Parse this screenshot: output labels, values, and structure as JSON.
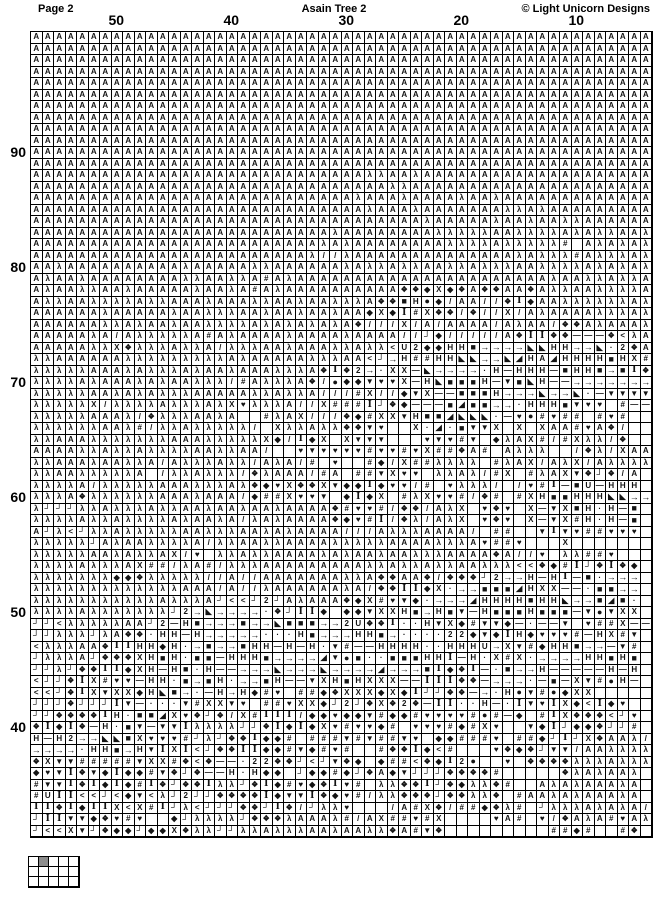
{
  "header": {
    "page_label": "Page 2",
    "title": "Asain Tree 2",
    "copyright": "© Light Unicorn Designs"
  },
  "colors": {
    "symbol": "#131313",
    "grid_line": "#000000",
    "background": "#ffffff",
    "page_map_fill": "#8c8c8c"
  },
  "chart_data": {
    "type": "table",
    "description": "Cross-stitch pattern symbol chart, page 2, columns 57-4 (right to left 4) and rows 100 (top) to 31 (bottom); each cell holds one stitch symbol",
    "n_cols": 54,
    "n_rows": 70,
    "column_ticks": [
      {
        "label": "50",
        "col_index": 7
      },
      {
        "label": "40",
        "col_index": 17
      },
      {
        "label": "30",
        "col_index": 27
      },
      {
        "label": "20",
        "col_index": 37
      },
      {
        "label": "10",
        "col_index": 47
      }
    ],
    "row_ticks": [
      {
        "label": "90",
        "row_index": 10
      },
      {
        "label": "80",
        "row_index": 20
      },
      {
        "label": "70",
        "row_index": 30
      },
      {
        "label": "60",
        "row_index": 40
      },
      {
        "label": "50",
        "row_index": 50
      },
      {
        "label": "40",
        "row_index": 60
      }
    ],
    "symbols": {
      "A": "A",
      "k": "λ",
      "/": "/",
      "v": "♥",
      "T": "▼",
      "X": "X",
      "D": "◆",
      "S": "■",
      "o": "●",
      "I": "I",
      "H": "H",
      "U": "U",
      "#": "#",
      "J": "┘",
      "<": "<",
      ">": "→",
      "L": "◣",
      "R": "◢",
      "%": "❖",
      "-": "—",
      ".": "·",
      "2": "2",
      " ": ""
    },
    "rows": [
      "AAAAAAAAAAAAAAAAAAAAAAAAAAAAAAAAAAAAAAAAAAAAAAAAAAAAAA",
      "AAAAAAAAAAAAAAAAAAAAAAAAAAAAAAAAAAAAAAAAAAAAAAAAAAAAAA",
      "AAAAAAAAAAAAAAAAAAAAAAAAAAAAAAAAAAAAAAAAAAAAAAAAAAAAAA",
      "AAAAAAAAAAAAAAAAAAAAAAAAAAAAAAAAAAAAAAAAAAAAAAAAAAAAAA",
      "AAAAAAAAAAAAAAAAAAAAAAAAAAAAAAAAAAAAAAAAAAAAAAAAAAAAAA",
      "AAAAAAAAAAAAAAAAAAAAAAAAAAAAAAAAAAAAAAAAAAAAAAAAAAAAAA",
      "AAAAAAAAAAAAAAAAAAAAAAAAAAAAAAAAAAAAAAAAAAAAAAAAAAAAAA",
      "AAAAAAAAAAAAAAAAAAAAAAAAAAAAAAAAAAAAAAAAAAAAAAAAAAAAAA",
      "AAAAAAAAAAAAAAAAAAAAAAAAAAAAAAAAAAAAAAAAAAAAAAAAAAAAAA",
      "AAAAAAAAAAAAAAAAAAAAAAAAAAAAAAAAAAAAAAAAAAAAAAAAAAAAAA",
      "AAAAAAAAAAAAAAAAAAAAAAAAAAAAAAAAAAAAAAAAAAAAAAAAAAAAAA",
      "AAAAAAAAAAAAAAAAAAAAAAAAAAAAAAAAAAAAAAAAAAAAAAAAAAAAAA",
      "AAAAAAAAAAAAAAAAAAAAAAAAAAAAAkkAAkAAAAAAAAAAAAAAAAAAA",
      "AAAAAAAAAAAAAAAAAAAAAAAAAAAAAAAkkAAAAAAAAAAAAAAAAAAAA",
      "AAAAAAAAAAAAAAAAAAAAAAAAAAAAkAAAkAAAAkAAkAAAAAAAAAAAAA",
      "AAAAAAAAAAAAAAAAAAAAAAAAAAAAAkAAAkAAAAAAAkkAkAAAAAAAAA",
      "AAAAAAAAAAAAAAAAAAAAAAAAAAAAAAAAAAkAAAAAkAAkAAkkAAAAAA",
      "AAAAAAAAAAAAAAAAAAAAAAAAAAkAAAAAAAAkkkkkAAkkkkAkAkkAAk",
      "AAAAAAAAAAAAAAAAAAAAAAAAAkAkAAAAAAAAkkkkAkkkkk# AkAkAk",
      "AAAAAAAAAAAAAAAAAAAAAAAAk//kAAAAAAAAAAAAAAkAkkk#AkkkAk",
      "AAkAAAAAAAAAAkAAAAAkkAAAAAAkAkkAkkAAkkAkkkAAkkkkAkAkAk",
      "AkAAkAAAAAAAAkkAAkkA#AkAAAAAAAAAAAAAAAAAAAAAAkAAkkAkk",
      "AkAAkkAAkAAAAAkAAkA#AkAAAAAAAAAA%%DXD%A%%AA%AkkAAkkkkA",
      "AkkAAkkkkAkkAAAkAAAkkAAkAAkkkA%%SHoD/AA//%IDAAkkkkkkAk",
      "AAAAAAkAAAAAkAAkkkAAkAAkAAkAADXDI#X%%/%//X/AkAAAAkkkAk",
      "AAAAAAkkAkAAkAAkkkkAkAkAkAkA%///X/A/AAAA/AkAA/%%AkAAAk",
      "AAAAAkA/AkkkkkA#AkAAAAkAAAAkAAAA//JD/////A%II%%---%<kA",
      "AAAAAkkX%kkkAkkA/kkkAAkAAAkkAkk<U2DDHHS>>>>LLHH>>L.2%A",
      "kkAAAAAAkkkkkkkkkAkAAAAAkkkAA<J>H##HHLL>>LRHARHHHHSHX#",
      "kkkkkAAAkAkkkAkAAkAAAkkkA%I%2>.XX-L>>>>.H-HHH-SHHS>SI%",
      "kkkkAkAAAkAkAAkkk/#AkkkA%/oDDTvvX-HLSSSH-TSLH-->>>>>>>",
      "kkkkkAAkAkAkkkAAAAAkkAkkA///#X//DTX--SSSH>>>L>>L.-TTTT",
      "kkkkkX/kkkkAkkkAkXvkkkA//X###IJ%D---SRSS>>.HHHSTvv #--",
      "kkkkkAAAk/%kkkAAkA  #kAX///%D#XXTHSSRLLL.-vo#v## #v#  ",
      "kkkkkkAAk#/kkAkkkkk/ XkkAkk%%Tv  X.R.STTX X XAA#vA%/  ",
      "kkAAAkkkkkkkAAAkkkkkXD/IDX XTTT   vTv#T DkAX#/#Xkk/%  ",
      "AAAAkkAkkAkkkkAAkkAA/  vTvvvv#vv#vX##%A# Akkk  /%k/XAA",
      "kkAAAkAAkkA/AkkkAkk/AkA/# v  #D/X##kkkk #kAX/AkX/Akkkk",
      "kkAAkkkkkA /kkAkkk/%kAAA/#A ##TXvv kkAk/#X #kAXT%J%/A ",
      "kkkkA/kkkkkAAAkkkAk%DvX%%XTDDIDvv/# vkkk/ /v#I-SU-HHH ",
      "kkkA%kkkkkkAAAkAAA/D##XvvT DIDX #kXvv#/%# #XHSSHHHLL>>",
      "kJJJkkAkkkAkkAAkAAkAAkAAAA%#vv#/%%/AkX v%v X-TXSH.H-S ",
      "kkkkAkkAkkkkAkAAkA/kAkAAAA%Dv#I/%k/AkX v%v X-TX#H.H-S ",
      "AJk<JkkAkkkkkAAkkkAAkAkAAAA///AkkkAAAA/ ##  TITv##vvv ",
      "kkkkkJAkAAkkkkA/kkAAkkAAAAkkkkkAAAAkkkAv##v   X       ",
      "kkkkkAAkAkkAX/v kkAkkAAAAkAkAAkAAkkkAAAA%A//v kk##v   ",
      "kkkkAkkkAX##/kA#/kkkAAAAAAAAAkkAkkAkkAAkkk<<%D#IJ%I%D ",
      "kkkkkkkDD%kkkkk//A//AAAAAAAkkA%%AA%/%%%J2>>H-HI-S.>>> ",
      "kkkkkkkkkkkkkAAA/A//kAAAAAAkA/%%IIDX.>>SSSRHXX--.SS>> ",
      "kkkkkkkkkkkAkkkAJ<<J2JAkAAA%DX#vTD.>>>RHHHHSHHL>>SRS. ",
      "kkkkAkkkkkkkJ2>L>>>>.%JIID DDTXXHS>HST-HSSSHSSS-ToTXX ",
      "JJ<kkkkkAAJ2-HS>>>S>>LSSS>>2U%%I..HTXD#TTD-.--T v##X--",
      "JJkkkJkA%%.HH-H>>>>>...HS>>>HHS>....22DTDIHDvvv#-HX#T ",
      "<kkkAA%IIHHDH.>S>>SHH-H-H.T#--HHHH..HHHU>XT#DHHS>>-T# ",
      "JkkkAJ%%%XHSH.SS-HHHS>>>>RToS..SSSHHI-H.X#X.>>>>HHSHS ",
      "JJkJ%%IIDXH-HS.H-->>>L>>>L>>>>R>>>SID%I-.S>>H-----H-H ",
      "<JJ%IX#vv-HH.S>SH.>>SH--TXHSHXXX--III%%->>>.-S-XT#oH- ",
      "<<J%IXTXXDHLS>.-H>HD#v ##D%XXXDXDIJJ%%->.HoT#oDXX     ",
      "JJJ%JJJIT-...T#XXTv ##vXXDJ2J%X%2%-II..H-.ITvIXD<IDv  ",
      "JJ%%%%IH.SSRXv%J%/X#III/DDvDDT#DD#vvvv#o#-D #IX%%%<Jv ",
      "%IDI%-H.ST-TTIkkkkJJ%IDIDXv#vvD# vvv#D#Xv  TDIJDD%JJ# ",
      "H-H2>>LLSXvvv#JkJ%%IDD# ###T#T##Tv DD###v ##DJIJX%AAk/",
      ">>>>.HHS>HTIXI<J%%IIDD#TD#v#  #%%ID<#   v%D%JTT/AAkkkk",
      "%XTT#####TXX#%<%--.22%%J<JT%D D##<%DI2o  v %%%%kkkAkkk",
      "DvTI%TDIDD#T%J%--H.HDD JDD#DJ%ADTJJJ%%%%#     %kAkAAk ",
      "#TTI%IDID#I%J%%IkkJ%ID#vD%Iv# kk%%IJ%Dkk%#  AkAkAAAkA ",
      "#UII<<J<DT<kJ2JJ%%%%IDTTI%Dv#/kk%%%J%%kk% #AAkAkAAAkA ",
      "II%IDIIX<X#IJk<JJJ%%JI%/Jkkv   /A#X%/##D%k# JkkkAkAkA/",
      "JIITTD%v#v  DJkkkkJ%%%kAAAk#/AX##v#X    vA# v/%AkA#vAk",
      "J<<XTJ%DDJDDX%kkJJkkAkkkAAkAAkk%A#T%         ##D#  #% "
    ]
  },
  "page_map": {
    "cols": 5,
    "rows": 3,
    "filled_cell": {
      "row": 0,
      "col": 1
    }
  }
}
